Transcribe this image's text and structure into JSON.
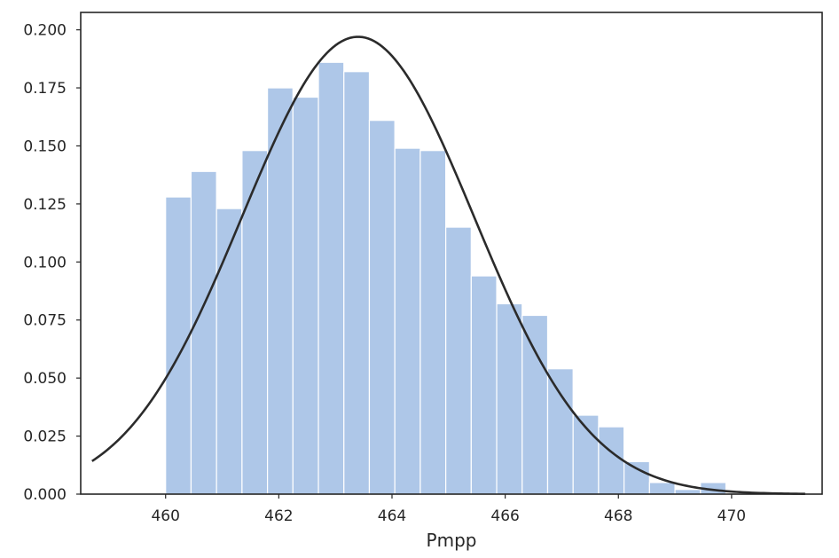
{
  "chart_data": {
    "type": "bar",
    "subtype": "histogram-with-fitted-normal-curve",
    "title": "",
    "xlabel": "Pmpp",
    "ylabel": "",
    "xlim": [
      458.5,
      471.6
    ],
    "ylim": [
      0,
      0.2075
    ],
    "x_ticks": [
      460,
      462,
      464,
      466,
      468,
      470
    ],
    "x_tick_labels": [
      "460",
      "462",
      "464",
      "466",
      "468",
      "470"
    ],
    "y_ticks": [
      0.0,
      0.025,
      0.05,
      0.075,
      0.1,
      0.125,
      0.15,
      0.175,
      0.2
    ],
    "y_tick_labels": [
      "0.000",
      "0.025",
      "0.050",
      "0.075",
      "0.100",
      "0.125",
      "0.150",
      "0.175",
      "0.200"
    ],
    "bins": {
      "edges": [
        460.0,
        460.45,
        460.9,
        461.35,
        461.8,
        462.25,
        462.7,
        463.15,
        463.6,
        464.05,
        464.5,
        464.95,
        465.4,
        465.85,
        466.3,
        466.75,
        467.2,
        467.65,
        468.1,
        468.55,
        469.0,
        469.45,
        469.9
      ],
      "values": [
        0.128,
        0.139,
        0.123,
        0.148,
        0.175,
        0.171,
        0.186,
        0.182,
        0.161,
        0.149,
        0.148,
        0.115,
        0.094,
        0.082,
        0.077,
        0.054,
        0.034,
        0.029,
        0.014,
        0.005,
        0.002,
        0.005
      ]
    },
    "fit_curve": {
      "distribution": "normal",
      "mean": 463.4,
      "std": 2.05,
      "peak": 0.197,
      "x_range": [
        458.7,
        471.3
      ]
    },
    "legend": "none",
    "grid": false,
    "colors": {
      "bars": "#aec7e8",
      "bar_edge": "#ffffff",
      "curve": "#2b2b2b",
      "axes": "#262626"
    }
  }
}
